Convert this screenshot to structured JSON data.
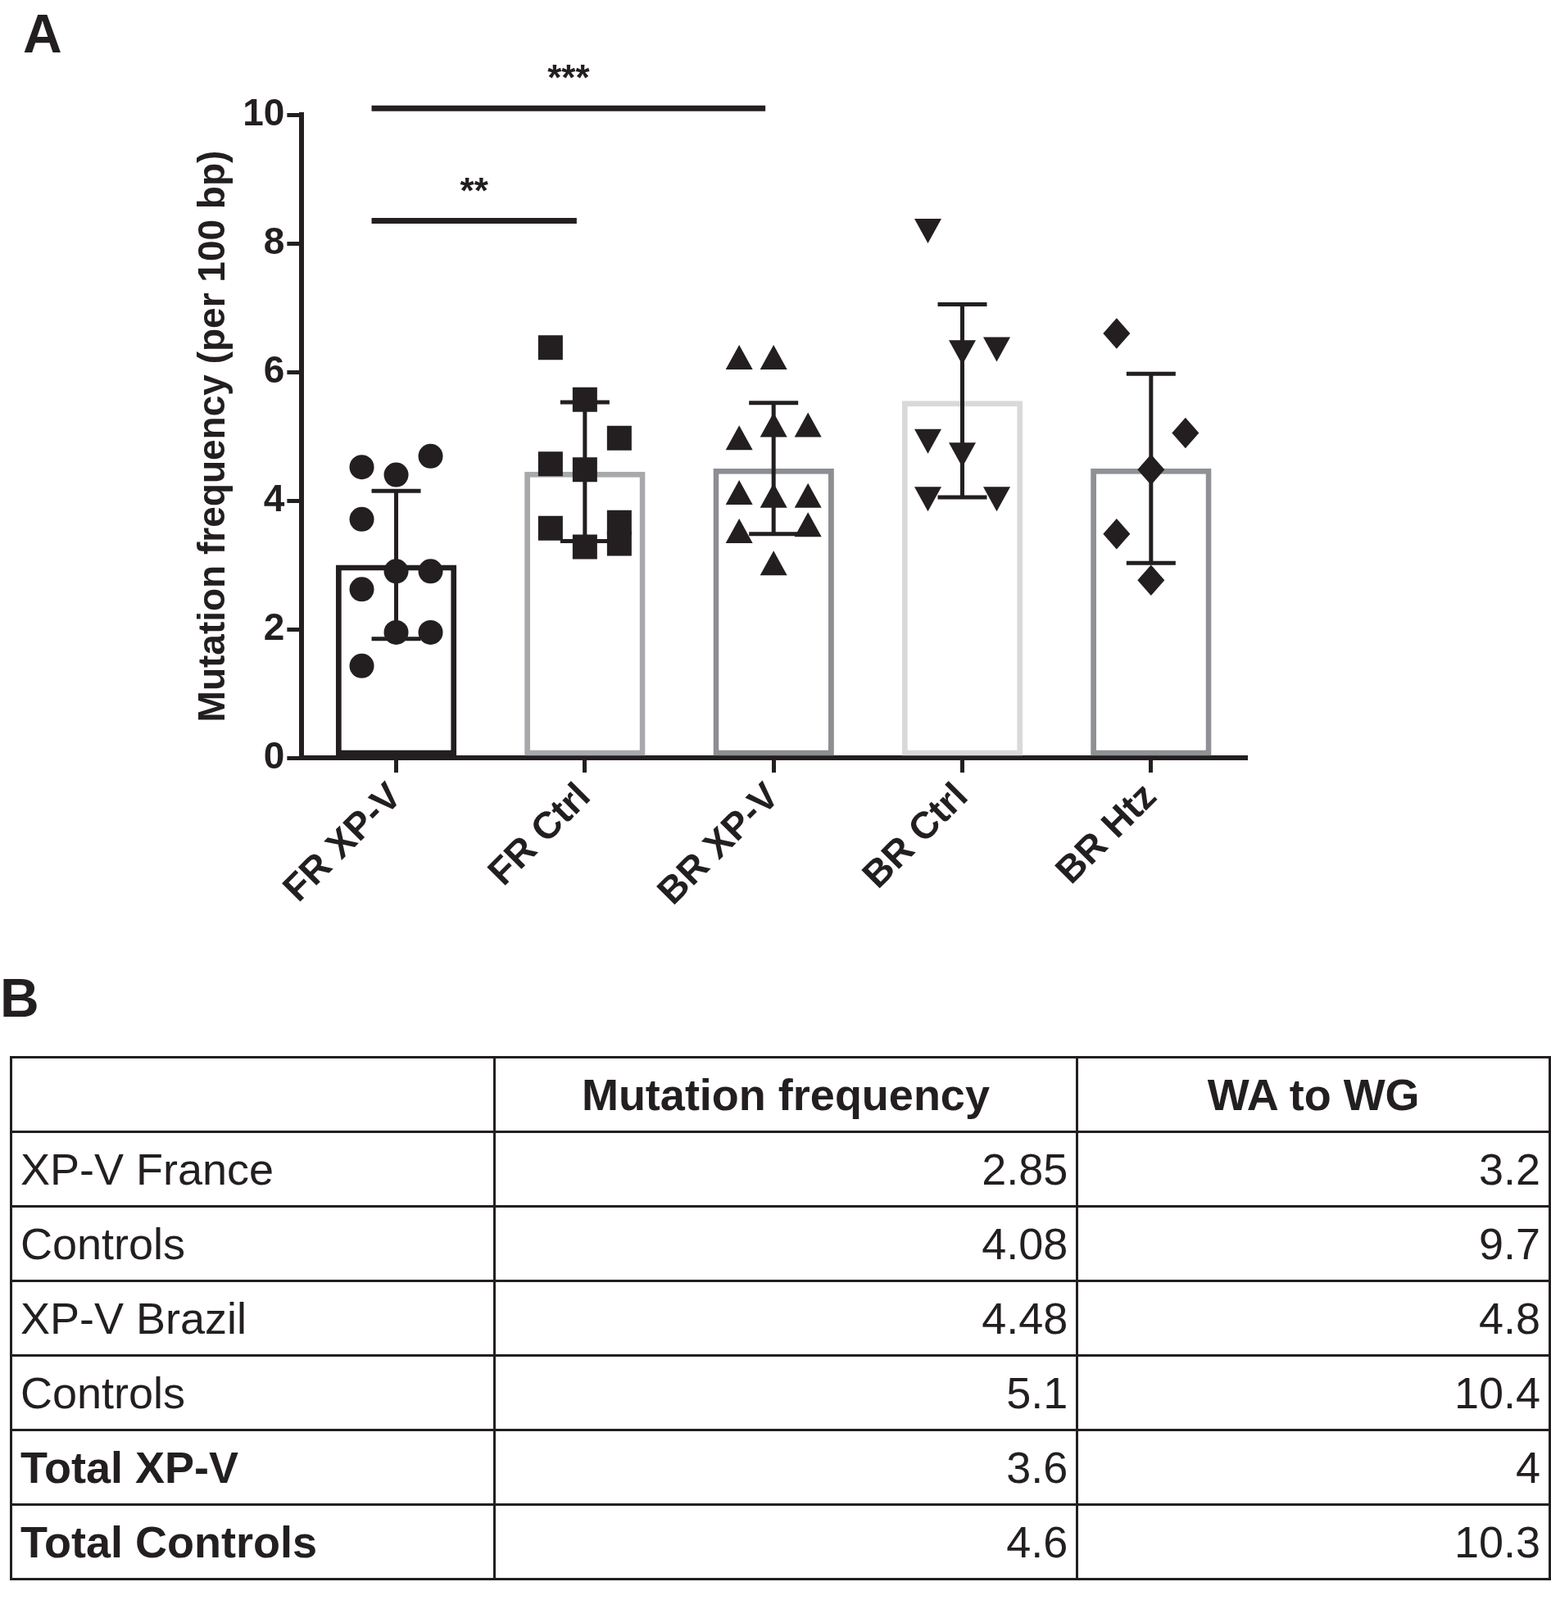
{
  "chart_data": {
    "type": "bar",
    "panel": "A",
    "categories": [
      "FR XP-V",
      "FR Ctrl",
      "BR XP-V",
      "BR Ctrl",
      "BR Htz"
    ],
    "values": [
      3.0,
      4.45,
      4.5,
      5.55,
      4.5
    ],
    "errors": [
      1.15,
      1.08,
      1.02,
      1.5,
      1.47
    ],
    "colors": [
      "#231f20",
      "#a7a9ac",
      "#8c8e91",
      "#d9d9d9",
      "#8f9194"
    ],
    "points": [
      [
        4.52,
        4.4,
        4.69,
        3.71,
        2.9,
        2.9,
        2.62,
        1.95,
        1.95,
        1.43
      ],
      [
        6.38,
        5.57,
        4.97,
        4.57,
        4.48,
        3.66,
        3.57,
        3.28,
        3.33
      ],
      [
        6.2,
        6.2,
        5.15,
        4.95,
        5.15,
        4.05,
        4.1,
        4.05,
        3.6,
        3.5,
        3.0
      ],
      [
        8.22,
        6.33,
        6.38,
        4.95,
        4.74,
        4.05,
        4.05
      ],
      [
        6.6,
        4.48,
        5.05,
        3.48,
        2.76
      ]
    ],
    "marker": [
      "circle",
      "square",
      "triangle",
      "triangle_down",
      "diamond"
    ],
    "y_label": "Mutation frequency (per 100 bp)",
    "ylim": [
      0,
      10
    ],
    "yticks": [
      0,
      2,
      4,
      6,
      8,
      10
    ],
    "grid": false,
    "annotations": [
      {
        "text": "**",
        "from": "FR XP-V",
        "to": "FR Ctrl",
        "y": 8.35
      },
      {
        "text": "***",
        "from": "FR XP-V",
        "to": "BR XP-V",
        "y": 10.1
      }
    ]
  },
  "table": {
    "panel": "B",
    "columns": [
      "Mutation frequency",
      "WA to WG"
    ],
    "rows": [
      {
        "label": "XP-V France",
        "values": [
          2.85,
          3.2
        ]
      },
      {
        "label": "Controls",
        "values": [
          4.08,
          9.7
        ]
      },
      {
        "label": "XP-V Brazil",
        "values": [
          4.48,
          4.8
        ]
      },
      {
        "label": "Controls",
        "values": [
          5.1,
          10.4
        ]
      }
    ],
    "total_rows": [
      {
        "label": "Total XP-V",
        "values": [
          3.6,
          4
        ]
      },
      {
        "label": "Total Controls",
        "values": [
          4.6,
          10.3
        ]
      }
    ]
  }
}
